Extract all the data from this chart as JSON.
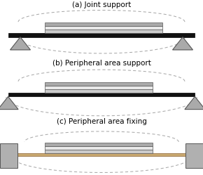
{
  "bg_color": "#ffffff",
  "title_a": "(a) Joint support",
  "title_b": "(b) Peripheral area support",
  "title_c": "(c) Peripheral area fixing",
  "beam_color": "#111111",
  "piezo_colors": [
    "#cccccc",
    "#e8e8e8",
    "#aaaaaa"
  ],
  "triangle_face": "#aaaaaa",
  "triangle_edge": "#555555",
  "dashed_color": "#aaaaaa",
  "wall_face": "#b0b0b0",
  "wall_edge": "#555555",
  "tan_color": "#c8a870",
  "tan_edge": "#8a6030",
  "title_fontsize": 7.5,
  "dashes": [
    4,
    3
  ]
}
